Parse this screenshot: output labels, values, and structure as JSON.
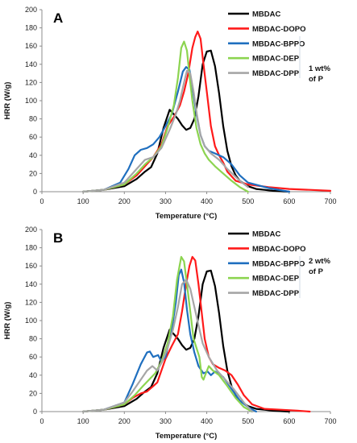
{
  "chart_data": [
    {
      "type": "line",
      "panel_label": "A",
      "xlabel": "Temperature (°C)",
      "ylabel": "HRR (W/g)",
      "xlim": [
        0,
        700
      ],
      "ylim": [
        0,
        200
      ],
      "xticks": [
        0,
        100,
        200,
        300,
        400,
        500,
        600,
        700
      ],
      "yticks": [
        0,
        20,
        40,
        60,
        80,
        100,
        120,
        140,
        160,
        180,
        200
      ],
      "grid": false,
      "legend_position": "top-right",
      "note": [
        "1 wt%",
        "of P"
      ],
      "series": [
        {
          "name": "MBDAC",
          "color": "#000000",
          "x": [
            100,
            150,
            200,
            230,
            250,
            265,
            280,
            295,
            310,
            320,
            330,
            340,
            350,
            360,
            370,
            380,
            390,
            400,
            410,
            420,
            430,
            440,
            450,
            460,
            470,
            480,
            500,
            520,
            540,
            560,
            600
          ],
          "y": [
            0,
            2,
            6,
            14,
            22,
            27,
            42,
            70,
            90,
            85,
            80,
            73,
            68,
            70,
            80,
            105,
            140,
            154,
            155,
            138,
            108,
            72,
            45,
            28,
            18,
            12,
            6,
            3,
            2,
            1,
            0
          ]
        },
        {
          "name": "MBDAC-DOPO",
          "color": "#ff1a1a",
          "x": [
            100,
            150,
            200,
            230,
            250,
            270,
            290,
            305,
            320,
            335,
            345,
            355,
            365,
            372,
            378,
            385,
            392,
            400,
            410,
            420,
            430,
            440,
            450,
            470,
            500,
            550,
            600,
            650,
            700
          ],
          "y": [
            0,
            2,
            8,
            18,
            28,
            38,
            52,
            72,
            82,
            95,
            110,
            130,
            158,
            170,
            176,
            168,
            140,
            110,
            72,
            50,
            40,
            32,
            22,
            12,
            8,
            5,
            3,
            2,
            1
          ]
        },
        {
          "name": "MBDAC-BPPO",
          "color": "#1f6fbf",
          "x": [
            100,
            150,
            190,
            210,
            225,
            240,
            255,
            270,
            285,
            300,
            315,
            330,
            342,
            350,
            358,
            365,
            375,
            385,
            395,
            405,
            420,
            440,
            460,
            480,
            500,
            550,
            600
          ],
          "y": [
            0,
            2,
            10,
            25,
            40,
            46,
            48,
            52,
            60,
            72,
            85,
            110,
            132,
            137,
            134,
            115,
            85,
            62,
            50,
            45,
            42,
            38,
            30,
            18,
            10,
            4,
            0
          ]
        },
        {
          "name": "MBDAC-DEP",
          "color": "#8cd450",
          "x": [
            100,
            150,
            200,
            230,
            250,
            270,
            290,
            305,
            320,
            330,
            338,
            345,
            352,
            358,
            365,
            375,
            385,
            395,
            405,
            420,
            440,
            460,
            480,
            500
          ],
          "y": [
            0,
            2,
            8,
            20,
            30,
            38,
            50,
            70,
            95,
            125,
            158,
            165,
            155,
            128,
            100,
            70,
            52,
            42,
            35,
            28,
            20,
            12,
            5,
            0
          ]
        },
        {
          "name": "MBDAC-DPP",
          "color": "#a6a6a6",
          "x": [
            100,
            150,
            200,
            230,
            250,
            270,
            290,
            310,
            325,
            335,
            345,
            352,
            360,
            368,
            376,
            385,
            395,
            410,
            430,
            450,
            480,
            500
          ],
          "y": [
            0,
            2,
            10,
            25,
            35,
            38,
            48,
            68,
            85,
            100,
            120,
            133,
            130,
            110,
            85,
            62,
            50,
            42,
            35,
            25,
            12,
            5
          ]
        }
      ]
    },
    {
      "type": "line",
      "panel_label": "B",
      "xlabel": "Temperature (°C)",
      "ylabel": "HRR (W/g)",
      "xlim": [
        0,
        700
      ],
      "ylim": [
        0,
        200
      ],
      "xticks": [
        0,
        100,
        200,
        300,
        400,
        500,
        600,
        700
      ],
      "yticks": [
        0,
        20,
        40,
        60,
        80,
        100,
        120,
        140,
        160,
        180,
        200
      ],
      "grid": false,
      "legend_position": "top-right",
      "note": [
        "2 wt%",
        "of P"
      ],
      "series": [
        {
          "name": "MBDAC",
          "color": "#000000",
          "x": [
            100,
            150,
            200,
            230,
            250,
            265,
            280,
            295,
            310,
            320,
            330,
            340,
            350,
            360,
            370,
            380,
            390,
            400,
            410,
            420,
            430,
            440,
            450,
            460,
            470,
            480,
            500,
            520,
            540,
            560,
            600
          ],
          "y": [
            0,
            2,
            6,
            14,
            22,
            27,
            42,
            70,
            90,
            85,
            80,
            73,
            68,
            70,
            80,
            105,
            140,
            154,
            155,
            138,
            108,
            72,
            45,
            28,
            18,
            12,
            6,
            3,
            2,
            1,
            0
          ]
        },
        {
          "name": "MBDAC-DOPO",
          "color": "#ff1a1a",
          "x": [
            100,
            150,
            200,
            220,
            240,
            255,
            270,
            280,
            290,
            300,
            315,
            330,
            340,
            350,
            358,
            365,
            372,
            380,
            388,
            395,
            405,
            415,
            430,
            445,
            460,
            475,
            490,
            510,
            540,
            580,
            620,
            650
          ],
          "y": [
            0,
            2,
            8,
            15,
            20,
            22,
            28,
            32,
            45,
            58,
            72,
            85,
            110,
            140,
            160,
            170,
            166,
            140,
            108,
            80,
            60,
            52,
            48,
            45,
            40,
            30,
            18,
            8,
            3,
            2,
            1,
            0
          ]
        },
        {
          "name": "MBDAC-BPPO",
          "color": "#1f6fbf",
          "x": [
            100,
            150,
            200,
            220,
            240,
            255,
            262,
            270,
            282,
            290,
            300,
            315,
            325,
            332,
            338,
            345,
            352,
            360,
            370,
            380,
            392,
            402,
            410,
            420,
            440,
            460,
            480,
            500,
            520
          ],
          "y": [
            0,
            2,
            10,
            30,
            52,
            65,
            66,
            60,
            62,
            55,
            60,
            90,
            120,
            150,
            156,
            142,
            112,
            85,
            65,
            50,
            42,
            44,
            40,
            44,
            38,
            25,
            12,
            5,
            0
          ]
        },
        {
          "name": "MBDAC-DEP",
          "color": "#8cd450",
          "x": [
            100,
            150,
            200,
            225,
            245,
            260,
            275,
            290,
            305,
            318,
            328,
            338,
            345,
            352,
            360,
            368,
            375,
            382,
            388,
            392,
            398,
            405,
            415,
            430,
            450,
            470,
            490,
            510
          ],
          "y": [
            0,
            2,
            8,
            18,
            28,
            35,
            42,
            55,
            75,
            105,
            145,
            170,
            165,
            140,
            110,
            80,
            70,
            60,
            38,
            35,
            42,
            50,
            45,
            40,
            28,
            15,
            5,
            0
          ]
        },
        {
          "name": "MBDAC-DPP",
          "color": "#a6a6a6",
          "x": [
            100,
            150,
            200,
            220,
            240,
            255,
            268,
            280,
            292,
            305,
            318,
            330,
            340,
            350,
            360,
            370,
            380,
            390,
            405,
            425,
            445,
            465,
            490,
            510
          ],
          "y": [
            0,
            2,
            10,
            22,
            35,
            45,
            50,
            45,
            55,
            70,
            90,
            115,
            140,
            145,
            135,
            115,
            95,
            75,
            60,
            45,
            35,
            25,
            10,
            0
          ]
        }
      ]
    }
  ]
}
